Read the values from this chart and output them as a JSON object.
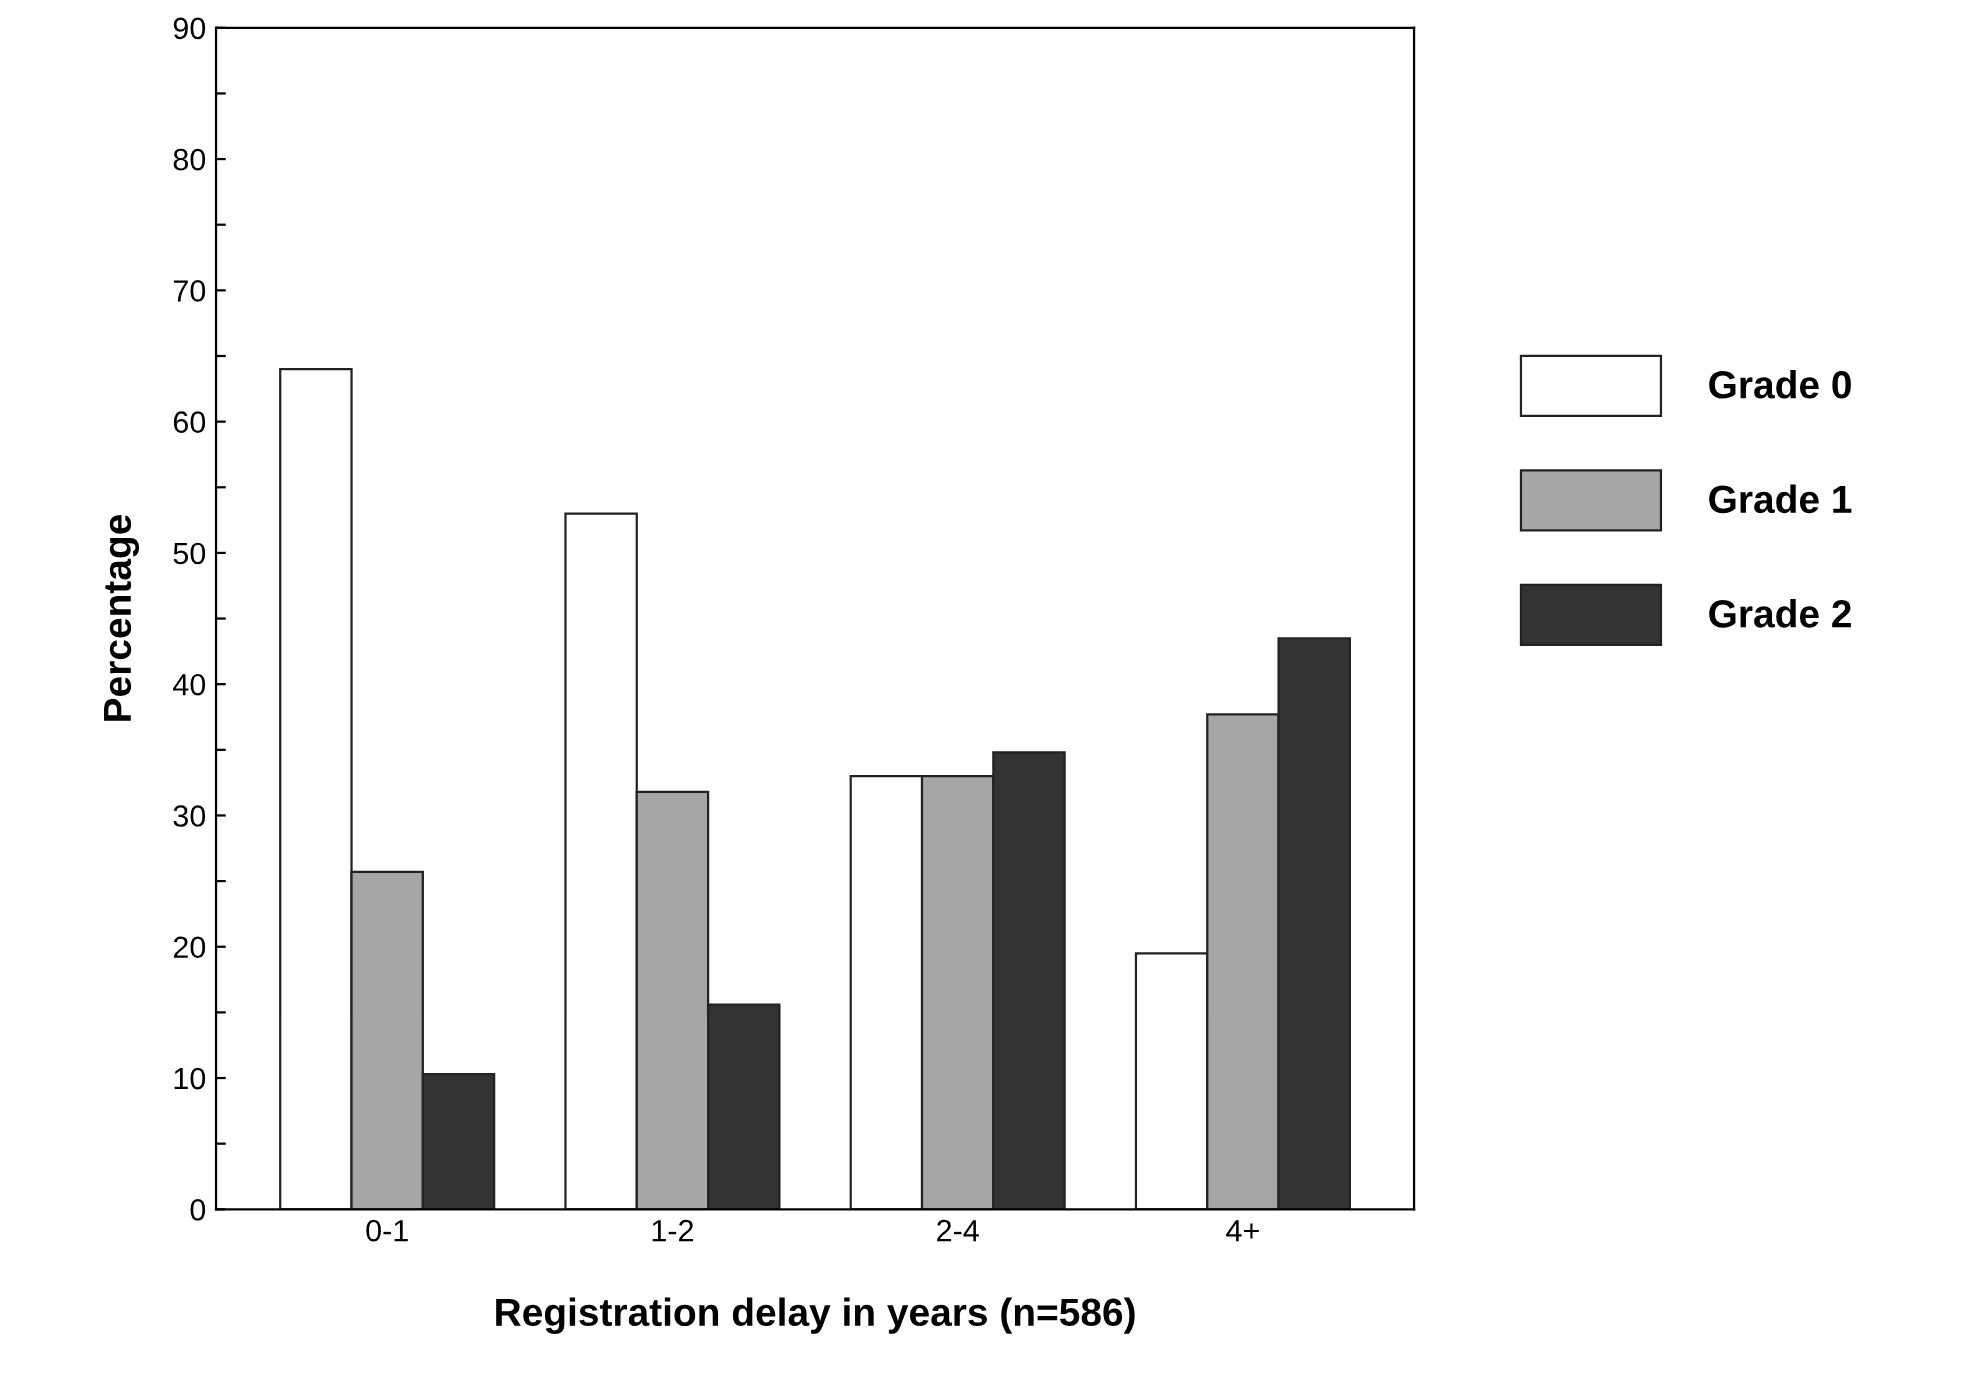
{
  "chart_data": {
    "type": "bar",
    "xlabel": "Registration delay in years (n=586)",
    "ylabel": "Percentage",
    "categories": [
      "0-1",
      "1-2",
      "2-4",
      "4+"
    ],
    "series": [
      {
        "name": "Grade 0",
        "color": "#ffffff",
        "values": [
          64,
          53,
          33,
          19.5
        ]
      },
      {
        "name": "Grade 1",
        "color": "#a6a6a6",
        "values": [
          25.7,
          31.8,
          33,
          37.7
        ]
      },
      {
        "name": "Grade 2",
        "color": "#333333",
        "values": [
          10.3,
          15.6,
          34.8,
          43.5
        ]
      }
    ],
    "ylim": [
      0,
      90
    ],
    "yticks": [
      0,
      {
        "value": 5,
        "label": null
      },
      10,
      {
        "value": 15,
        "label": null
      },
      20,
      {
        "value": 25,
        "label": null
      },
      30,
      {
        "value": 35,
        "label": null
      },
      40,
      {
        "value": 45,
        "label": null
      },
      50,
      {
        "value": 55,
        "label": null
      },
      60,
      {
        "value": 65,
        "label": null
      },
      70,
      {
        "value": 75,
        "label": null
      },
      80,
      {
        "value": 85,
        "label": null
      },
      90
    ],
    "grid": false,
    "legend": "right"
  }
}
